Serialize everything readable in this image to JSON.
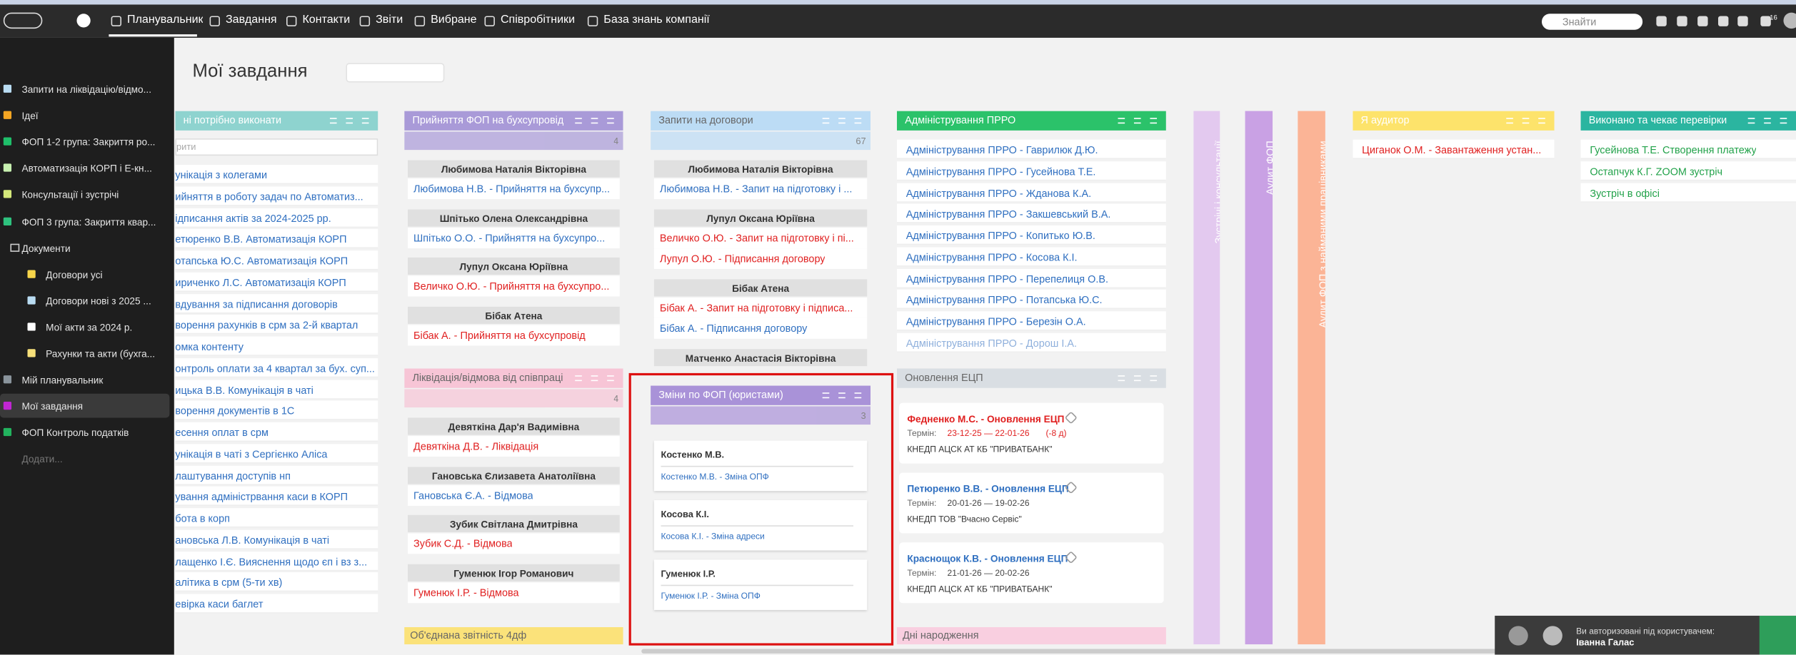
{
  "topbar": {
    "nav": [
      "Планувальник",
      "Завдання",
      "Контакти",
      "Звіти",
      "Вибране",
      "Співробітники",
      "База знань компанії"
    ],
    "search_placeholder": "Знайти",
    "badge": "16"
  },
  "sidebar": {
    "items": [
      {
        "text": "Запити на ліквідацію/відмо...",
        "color": "#b9dcf2"
      },
      {
        "text": "Ідеї",
        "color": "#f5a623"
      },
      {
        "text": "ФОП 1-2 група: Закриття ро...",
        "color": "#1fbf6a"
      },
      {
        "text": "Автоматизація КОРП і Е-кн...",
        "color": "#c7f0b0"
      },
      {
        "text": "Консультації і зустрічі",
        "color": "#d4e87a"
      },
      {
        "text": "ФОП 3 група: Закриття квар...",
        "color": "#2ec27e"
      },
      {
        "text": "Документи",
        "children": [
          {
            "text": "Договори усі",
            "color": "#f7d54a"
          },
          {
            "text": "Договори нові з 2025 ...",
            "color": "#b9dcf2"
          },
          {
            "text": "Мої акти за 2024 р.",
            "color": "#ffffff"
          },
          {
            "text": "Рахунки та акти (бухга...",
            "color": "#f7e07a"
          }
        ]
      },
      {
        "text": "Мій планувальник",
        "color": "#8a949c"
      },
      {
        "text": "Мої завдання",
        "color": "#c026d3",
        "active": true
      },
      {
        "text": "ФОП Контроль податків",
        "color": "#22b35e"
      }
    ],
    "add": "Додати..."
  },
  "header": {
    "title": "Мої завдання"
  },
  "columns": [
    {
      "title": "ні потрібно виконати",
      "color": "#8ed3cf",
      "filter": "рити",
      "items": [
        {
          "text": "унікація з колегами",
          "color": "#2f6fc0"
        },
        {
          "text": "ийняття в роботу задач по Автоматиз...",
          "color": "#2f6fc0"
        },
        {
          "text": "ідписання актів за 2024-2025 рр.",
          "color": "#2f6fc0"
        },
        {
          "text": "етюренко В.В. Автоматизація КОРП",
          "color": "#2f6fc0"
        },
        {
          "text": "отапська Ю.С. Автоматизація КОРП",
          "color": "#2f6fc0"
        },
        {
          "text": "ириченко Л.С. Автоматизація КОРП",
          "color": "#2f6fc0"
        },
        {
          "text": "вдування за підписання договорів",
          "color": "#2f6fc0"
        },
        {
          "text": "ворення рахунків в срм за 2-й квартал",
          "color": "#2f6fc0"
        },
        {
          "text": "омка контенту",
          "color": "#2f6fc0"
        },
        {
          "text": "онтроль оплати за 4 квартал за бух. суп...",
          "color": "#2f6fc0"
        },
        {
          "text": "ицька В.В. Комунікація в чаті",
          "color": "#2f6fc0"
        },
        {
          "text": "ворення документів в 1С",
          "color": "#2f6fc0"
        },
        {
          "text": "есення оплат в срм",
          "color": "#2f6fc0"
        },
        {
          "text": "унікація в чаті з Сергієнко Аліса",
          "color": "#2f6fc0"
        },
        {
          "text": "лаштування доступів нп",
          "color": "#2f6fc0"
        },
        {
          "text": "ування адміністрвання каси в КОРП",
          "color": "#2f6fc0"
        },
        {
          "text": "бота в корп",
          "color": "#2f6fc0"
        },
        {
          "text": "ановська Л.В. Комунікація в чаті",
          "color": "#2f6fc0"
        },
        {
          "text": "лащенко І.Є. Вияснення щодо єп і вз з...",
          "color": "#2f6fc0"
        },
        {
          "text": "алітика в срм (5-ти хв)",
          "color": "#2f6fc0"
        },
        {
          "text": "евірка каси баглет",
          "color": "#2f6fc0"
        }
      ]
    },
    {
      "title": "Прийняття ФОП на бухсупровід",
      "color": "#a99ad8",
      "count": "4",
      "groups": [
        {
          "name": "Любимова Наталія Вікторівна",
          "items": [
            {
              "text": "Любимова Н.В. - Прийняття на бухсупр...",
              "color": "#2f6fc0"
            }
          ]
        },
        {
          "name": "Шпітько Олена Олександрівна",
          "items": [
            {
              "text": "Шпітько О.О. - Прийняття на бухсупро...",
              "color": "#2f6fc0"
            }
          ]
        },
        {
          "name": "Лупул Оксана Юріївна",
          "items": [
            {
              "text": "Величко О.Ю. - Прийняття на бухсупро...",
              "color": "#e02020"
            }
          ]
        },
        {
          "name": "Бібак Атена",
          "items": [
            {
              "text": "Бібак А. - Прийняття на бухсупровід",
              "color": "#e02020"
            }
          ]
        }
      ]
    },
    {
      "title": "Ліквідація/відмова від співпраці",
      "color": "#f7c5d6",
      "count": "4",
      "groups": [
        {
          "name": "Девяткіна Дар'я Вадимівна",
          "items": [
            {
              "text": "Девяткіна Д.В. - Ліквідація",
              "color": "#e02020"
            }
          ]
        },
        {
          "name": "Гановська Єлизавета Анатоліївна",
          "items": [
            {
              "text": "Гановська Є.А. - Відмова",
              "color": "#2f6fc0"
            }
          ]
        },
        {
          "name": "Зубик Світлана Дмитрівна",
          "items": [
            {
              "text": "Зубик С.Д. - Відмова",
              "color": "#e02020"
            }
          ]
        },
        {
          "name": "Гуменюк Ігор Романович",
          "items": [
            {
              "text": "Гуменюк І.Р. - Відмова",
              "color": "#e02020"
            }
          ]
        }
      ]
    },
    {
      "title": "Об'єднана звітність 4дф",
      "color": "#fbe27a"
    },
    {
      "title": "Запити на договори",
      "color": "#bcdcf5",
      "count": "67",
      "groups": [
        {
          "name": "Любимова Наталія Вікторівна",
          "items": [
            {
              "text": "Любимова Н.В. - Запит на підготовку і ...",
              "color": "#2f6fc0"
            }
          ]
        },
        {
          "name": "Лупул Оксана Юріївна",
          "items": [
            {
              "text": "Величко О.Ю. - Запит на підготовку і пі...",
              "color": "#e02020"
            },
            {
              "text": "Лупул О.Ю. - Підписання договору",
              "color": "#e02020"
            }
          ]
        },
        {
          "name": "Бібак Атена",
          "items": [
            {
              "text": "Бібак А. - Запит на підготовку і підписа...",
              "color": "#e02020"
            },
            {
              "text": "Бібак А. - Підписання договору",
              "color": "#2f6fc0"
            }
          ]
        },
        {
          "name": "Матченко Анастасія Вікторівна",
          "items": []
        }
      ]
    },
    {
      "title": "Зміни по ФОП (юристами)",
      "color": "#a992d8",
      "count": "3",
      "cards": [
        {
          "name": "Костенко М.В.",
          "task": "Костенко М.В. - Зміна ОПФ"
        },
        {
          "name": "Косова К.І.",
          "task": "Косова К.І. - Зміна адреси"
        },
        {
          "name": "Гуменюк І.Р.",
          "task": "Гуменюк І.Р. - Зміна ОПФ"
        }
      ]
    },
    {
      "title": "Адміністрування ПРРО",
      "color": "#2bc26a",
      "items": [
        {
          "text": "Адміністрування ПРРО - Гаврилюк Д.Ю.",
          "color": "#2f6fc0"
        },
        {
          "text": "Адміністрування ПРРО - Гусейнова Т.Е.",
          "color": "#2f6fc0"
        },
        {
          "text": "Адміністрування ПРРО - Жданова К.А.",
          "color": "#2f6fc0"
        },
        {
          "text": "Адміністрування ПРРО - Закшевський В.А.",
          "color": "#2f6fc0"
        },
        {
          "text": "Адміністрування ПРРО - Копитько Ю.В.",
          "color": "#2f6fc0"
        },
        {
          "text": "Адміністрування ПРРО - Косова К.І.",
          "color": "#2f6fc0"
        },
        {
          "text": "Адміністрування ПРРО - Перепелиця О.В.",
          "color": "#2f6fc0"
        },
        {
          "text": "Адміністрування ПРРО - Потапська Ю.С.",
          "color": "#2f6fc0"
        },
        {
          "text": "Адміністрування ПРРО - Березін О.А.",
          "color": "#2f6fc0"
        },
        {
          "text": "Адміністрування ПРРО - Дорош І.А.",
          "color": "#8fb0dc"
        }
      ]
    },
    {
      "title": "Оновлення ЕЦП",
      "color": "#d9dee3",
      "ecp": [
        {
          "title": "Федненко М.С. - Оновлення ЕЦП",
          "color": "#e02020",
          "term_label": "Термін:",
          "term": "23-12-25 — 22-01-26",
          "overdue": "(-8 д)",
          "provider": "КНЕДП АЦСК АТ КБ \"ПРИВАТБАНК\""
        },
        {
          "title": "Петюренко В.В. - Оновлення ЕЦП",
          "color": "#2f6fc0",
          "term_label": "Термін:",
          "term": "20-01-26 — 19-02-26",
          "provider": "КНЕДП ТОВ \"Вчасно Сервіс\""
        },
        {
          "title": "Краснощок К.В. - Оновлення ЕЦП",
          "color": "#2f6fc0",
          "term_label": "Термін:",
          "term": "21-01-26 — 20-02-26",
          "provider": "КНЕДП АЦСК АТ КБ \"ПРИВАТБАНК\""
        }
      ]
    },
    {
      "title": "Дні народження",
      "color": "#f9cfe0"
    },
    {
      "title": "Зустрічі і консультації",
      "color": "#e3c9ef"
    },
    {
      "title": "Аудит ФОП",
      "color": "#c9a1e4"
    },
    {
      "title": "Аудит ФОП з найманими працівниками",
      "color": "#fbb496"
    },
    {
      "title": "Я аудитор",
      "color": "#fde36b",
      "items": [
        {
          "text": "Циганок О.М. - Завантаження устан...",
          "color": "#e02020"
        }
      ]
    },
    {
      "title": "Виконано та чекає перевірки",
      "color": "#2bb5a0",
      "items": [
        {
          "text": "Гусейнова Т.Е. Створення платежу",
          "color": "#22a24a"
        },
        {
          "text": "Остапчук К.Г. ZOOM зустріч",
          "color": "#22a24a"
        },
        {
          "text": "Зустріч в офісі",
          "color": "#22a24a"
        }
      ]
    }
  ],
  "notification": {
    "text": "Ви авторизовані під користувачем:",
    "user": "Іванна Галас"
  }
}
